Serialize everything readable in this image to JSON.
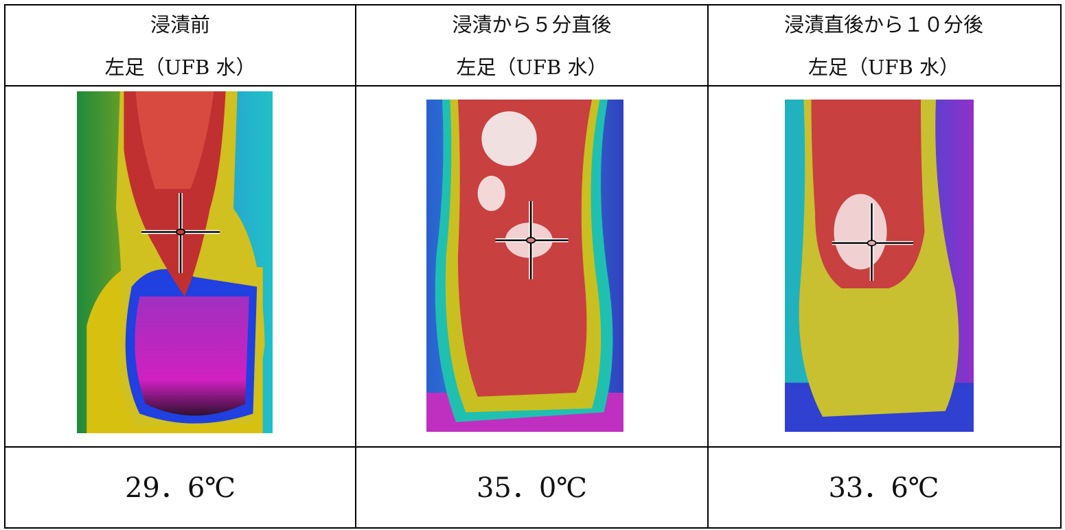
{
  "table": {
    "columns": [
      {
        "title": "浸漬前",
        "subtitle": "左足（UFB 水）",
        "temperature": "29．6℃"
      },
      {
        "title": "浸漬から５分直後",
        "subtitle": "左足（UFB 水）",
        "temperature": "35．0℃"
      },
      {
        "title": "浸漬直後から１０分後",
        "subtitle": "左足（UFB 水）",
        "temperature": "33．6℃"
      }
    ]
  }
}
